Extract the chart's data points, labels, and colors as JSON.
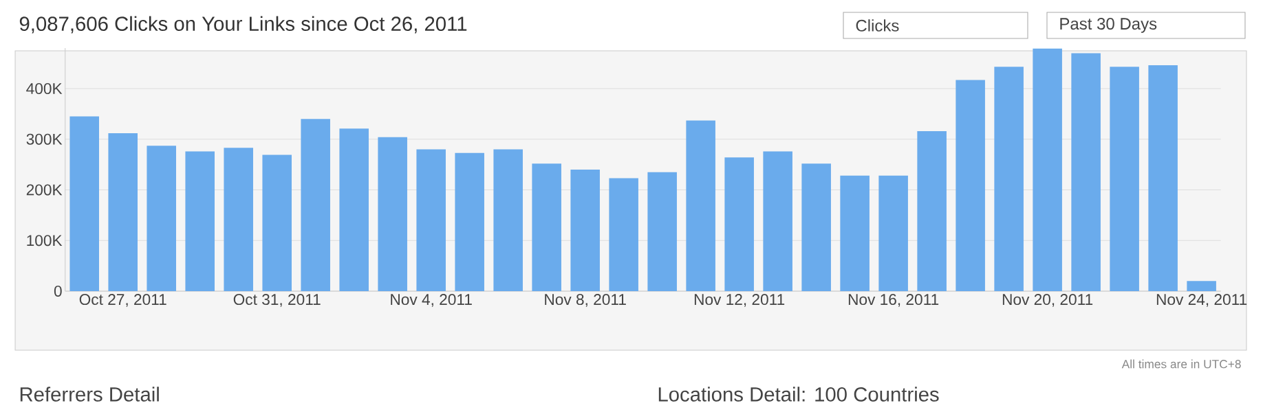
{
  "chart_data": {
    "type": "bar",
    "title": "9,087,606 Clicks on Your Links since Oct 26, 2011",
    "categories": [
      null,
      "Oct 27, 2011",
      null,
      null,
      null,
      "Oct 31, 2011",
      null,
      null,
      null,
      "Nov 4, 2011",
      null,
      null,
      null,
      "Nov 8, 2011",
      null,
      null,
      null,
      "Nov 12, 2011",
      null,
      null,
      null,
      "Nov 16, 2011",
      null,
      null,
      null,
      "Nov 20, 2011",
      null,
      null,
      null,
      "Nov 24, 2011"
    ],
    "values": [
      345000,
      312000,
      287000,
      276000,
      283000,
      269000,
      340000,
      321000,
      304000,
      280000,
      273000,
      280000,
      252000,
      240000,
      223000,
      235000,
      337000,
      264000,
      276000,
      252000,
      228000,
      228000,
      316000,
      417000,
      443000,
      479000,
      470000,
      443000,
      446000,
      20000
    ],
    "color": "#6aabec",
    "ylim": [
      0,
      480000
    ],
    "yticks": [
      0,
      {
        "value": 100000,
        "label": "100K"
      },
      {
        "value": 200000,
        "label": "200K"
      },
      {
        "value": 300000,
        "label": "300K"
      },
      {
        "value": 400000,
        "label": "400K"
      }
    ],
    "grid": "y",
    "annotations": [
      "Clicks",
      "Past 30 Days",
      "All times are in UTC+8",
      "Referrers Detail",
      "Locations Detail: 100 Countries"
    ]
  }
}
